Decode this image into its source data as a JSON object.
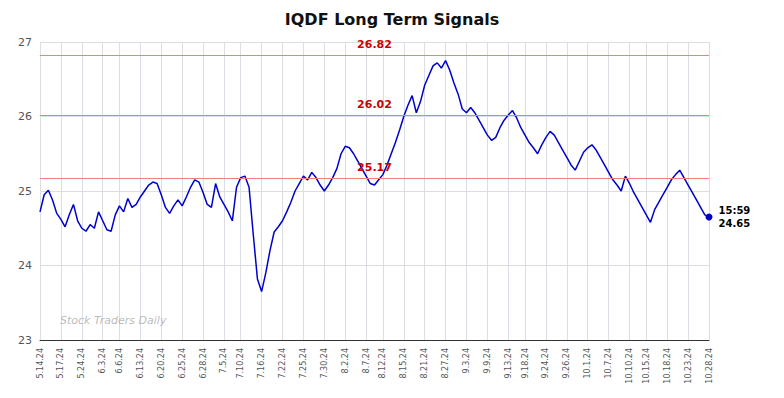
{
  "chart_data": {
    "type": "line",
    "title": "IQDF Long Term Signals",
    "color": "#0000cc",
    "grid": true,
    "ylim": [
      23,
      27
    ],
    "yticks": [
      23,
      24,
      25,
      26,
      27
    ],
    "hlines": [
      {
        "value": 25.17,
        "label": "25.17",
        "color": "#f08080"
      },
      {
        "value": 26.02,
        "label": "26.02",
        "color": "#f08080"
      },
      {
        "value": 26.82,
        "label": "26.82",
        "color": "#f08080"
      }
    ],
    "annotations": [
      {
        "text": "15:59\n24.65",
        "y": 24.65
      },
      {
        "text": "Stock Traders Daily"
      }
    ],
    "categories": [
      "5.14.24",
      null,
      null,
      null,
      null,
      "5.17.24",
      null,
      null,
      null,
      null,
      "5.24.24",
      null,
      null,
      null,
      null,
      "6.3.24",
      null,
      null,
      null,
      "6.6.24",
      null,
      null,
      null,
      null,
      "6.13.24",
      null,
      null,
      null,
      null,
      "6.20.24",
      null,
      null,
      null,
      null,
      "6.25.24",
      null,
      null,
      null,
      null,
      "6.28.24",
      null,
      null,
      null,
      null,
      "7.5.24",
      null,
      null,
      null,
      "7.10.24",
      null,
      null,
      null,
      null,
      "7.16.24",
      null,
      null,
      null,
      null,
      "7.22.24",
      null,
      null,
      null,
      null,
      "7.25.24",
      null,
      null,
      null,
      null,
      "7.30.24",
      null,
      null,
      null,
      null,
      "8.2.24",
      null,
      null,
      null,
      null,
      "8.7.24",
      null,
      null,
      null,
      "8.12.24",
      null,
      null,
      null,
      null,
      "8.15.24",
      null,
      null,
      null,
      null,
      "8.21.24",
      null,
      null,
      null,
      null,
      "8.27.24",
      null,
      null,
      null,
      null,
      "9.3.24",
      null,
      null,
      null,
      null,
      "9.9.24",
      null,
      null,
      null,
      null,
      "9.13.24",
      null,
      null,
      null,
      "9.18.24",
      null,
      null,
      null,
      null,
      "9.24.24",
      null,
      null,
      null,
      null,
      "9.26.24",
      null,
      null,
      null,
      null,
      "10.1.24",
      null,
      null,
      null,
      null,
      "10.7.24",
      null,
      null,
      null,
      null,
      "10.10.24",
      null,
      null,
      null,
      "10.15.24",
      null,
      null,
      null,
      null,
      "10.18.24",
      null,
      null,
      null,
      null,
      "10.23.24",
      null,
      null,
      null,
      null,
      "10.28.24"
    ],
    "values": [
      24.72,
      24.95,
      25.01,
      24.88,
      24.7,
      24.62,
      24.52,
      24.68,
      24.82,
      24.6,
      24.5,
      24.46,
      24.55,
      24.5,
      24.72,
      24.6,
      24.48,
      24.46,
      24.68,
      24.8,
      24.72,
      24.9,
      24.78,
      24.82,
      24.92,
      25.0,
      25.08,
      25.12,
      25.1,
      24.95,
      24.78,
      24.7,
      24.8,
      24.88,
      24.8,
      24.92,
      25.05,
      25.15,
      25.12,
      24.98,
      24.82,
      24.78,
      25.1,
      24.92,
      24.82,
      24.72,
      24.6,
      25.05,
      25.18,
      25.2,
      25.05,
      24.42,
      23.82,
      23.65,
      23.9,
      24.2,
      24.45,
      24.52,
      24.6,
      24.72,
      24.85,
      25.0,
      25.1,
      25.2,
      25.15,
      25.25,
      25.18,
      25.08,
      25.0,
      25.08,
      25.18,
      25.3,
      25.5,
      25.6,
      25.58,
      25.5,
      25.4,
      25.3,
      25.2,
      25.1,
      25.08,
      25.15,
      25.22,
      25.35,
      25.5,
      25.65,
      25.82,
      26.0,
      26.15,
      26.28,
      26.05,
      26.2,
      26.42,
      26.55,
      26.68,
      26.72,
      26.65,
      26.75,
      26.62,
      26.45,
      26.3,
      26.1,
      26.05,
      26.12,
      26.05,
      25.95,
      25.85,
      25.75,
      25.68,
      25.72,
      25.85,
      25.95,
      26.02,
      26.08,
      25.98,
      25.85,
      25.75,
      25.65,
      25.58,
      25.5,
      25.62,
      25.72,
      25.8,
      25.75,
      25.65,
      25.55,
      25.45,
      25.35,
      25.28,
      25.4,
      25.52,
      25.58,
      25.62,
      25.55,
      25.45,
      25.35,
      25.25,
      25.15,
      25.08,
      25.0,
      25.2,
      25.1,
      24.98,
      24.88,
      24.78,
      24.68,
      24.58,
      24.75,
      24.85,
      24.95,
      25.05,
      25.15,
      25.22,
      25.28,
      25.18,
      25.08,
      24.98,
      24.88,
      24.78,
      24.68,
      24.65
    ]
  }
}
